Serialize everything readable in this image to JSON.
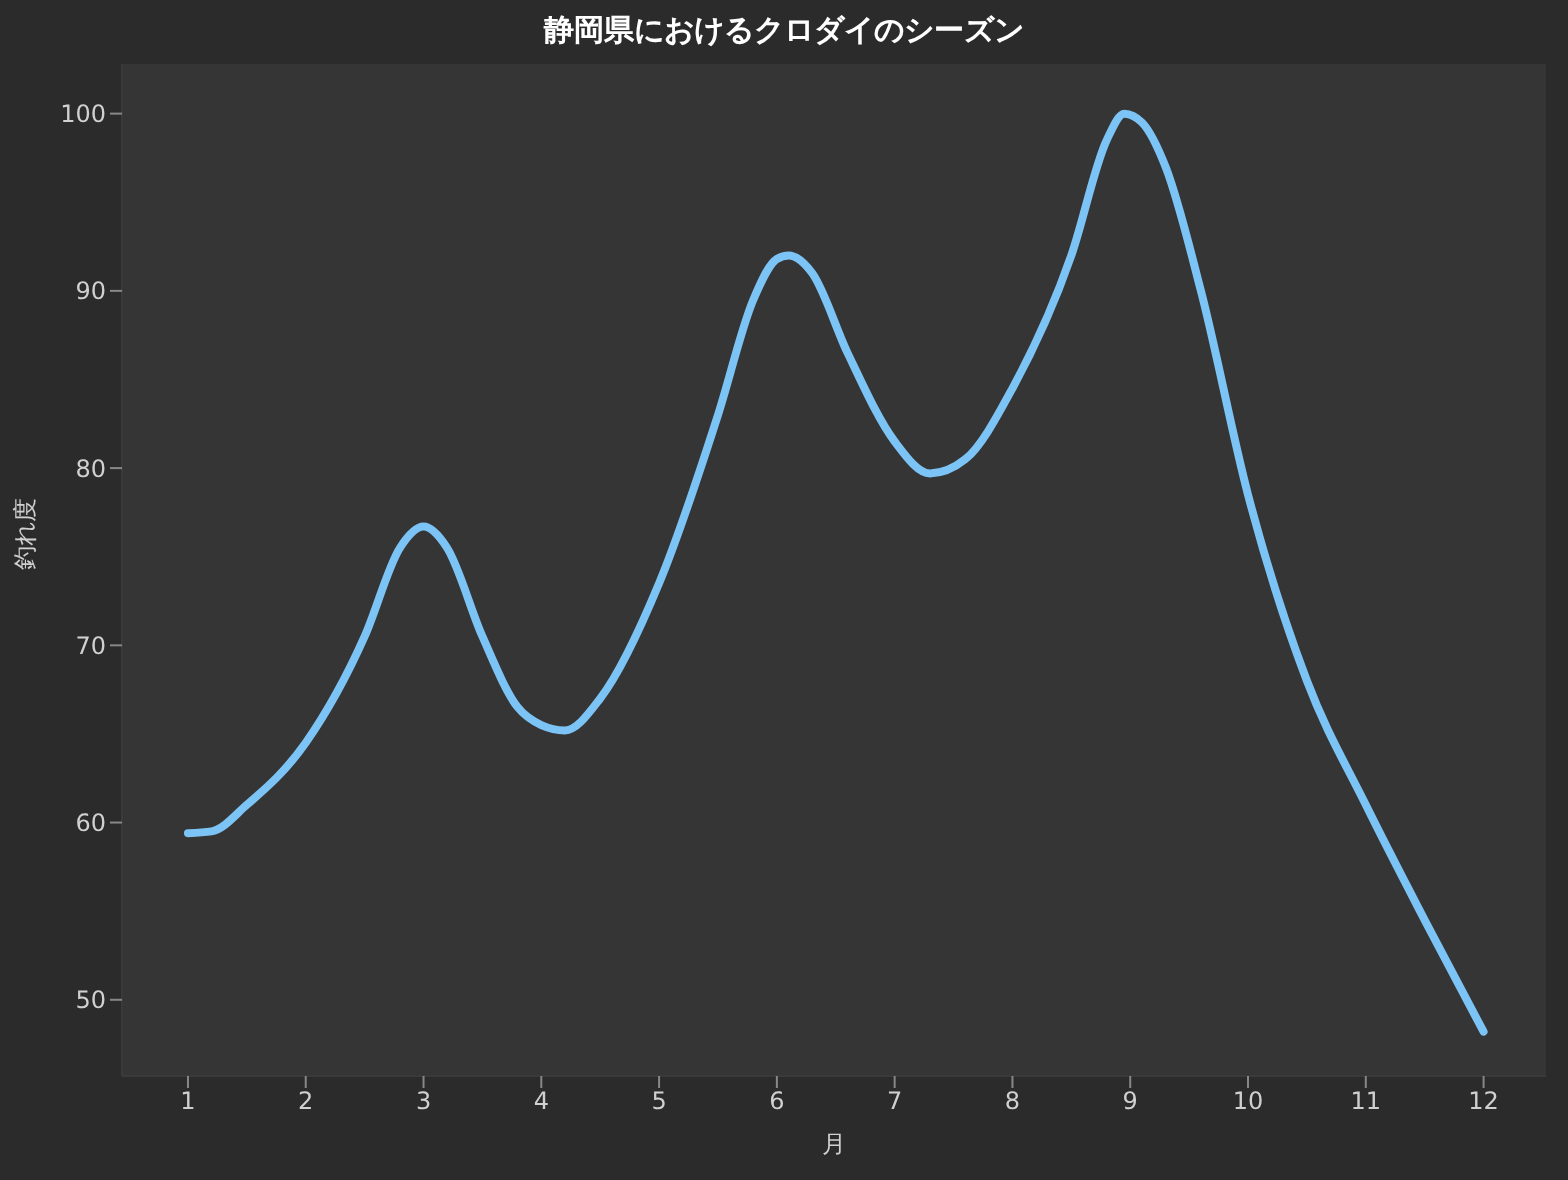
{
  "chart_data": {
    "type": "line",
    "title": "静岡県におけるクロダイのシーズン",
    "xlabel": "月",
    "ylabel": "釣れ度",
    "series": [
      {
        "color": "#7cc4f5",
        "x": [
          1,
          1.2,
          1.5,
          2,
          2.5,
          2.8,
          3,
          3.2,
          3.5,
          3.8,
          4,
          4.2,
          4.5,
          5,
          5.5,
          5.8,
          6,
          6.1,
          6.3,
          6.6,
          7,
          7.3,
          7.6,
          8,
          8.5,
          8.8,
          8.95,
          9.1,
          9.3,
          9.6,
          10,
          10.5,
          11,
          11.5,
          12
        ],
        "values": [
          59.4,
          59.5,
          61,
          64.5,
          70.5,
          75.5,
          76.7,
          75.5,
          70.5,
          66.5,
          65.5,
          65.2,
          67,
          73.5,
          83,
          89.5,
          91.8,
          92,
          91,
          86.5,
          81.5,
          79.7,
          80.5,
          84.5,
          92,
          98.5,
          100,
          99.5,
          97,
          90,
          78.5,
          68,
          61,
          54.5,
          48.2
        ]
      }
    ],
    "xlim": [
      0.44,
      12.53
    ],
    "xticks": [
      1,
      2,
      3,
      4,
      5,
      6,
      7,
      8,
      9,
      10,
      11,
      12
    ],
    "ylim": [
      45.7,
      102.8
    ],
    "yticks": [
      50,
      60,
      70,
      80,
      90,
      100
    ],
    "grid": false
  }
}
